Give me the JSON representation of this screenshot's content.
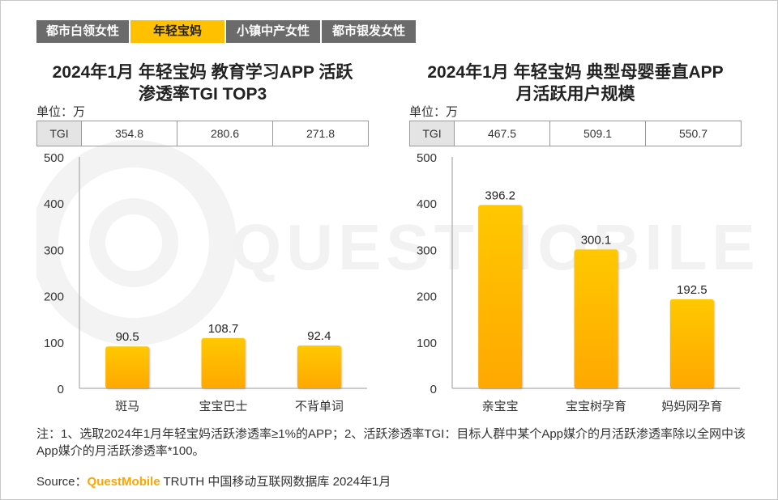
{
  "tabs": [
    {
      "label": "都市白领女性",
      "active": false
    },
    {
      "label": "年轻宝妈",
      "active": true
    },
    {
      "label": "小镇中产女性",
      "active": false
    },
    {
      "label": "都市银发女性",
      "active": false
    }
  ],
  "watermark": "QUESTMOBILE",
  "colors": {
    "bar_top": "#ffc800",
    "bar_bottom": "#ffa800",
    "tab_active": "#ffc000",
    "tab_inactive": "#6b6b6b",
    "brand": "#ffa500"
  },
  "chart_data": [
    {
      "type": "bar",
      "title_line1": "2024年1月 年轻宝妈 教育学习APP 活跃",
      "title_line2": "渗透率TGI TOP3",
      "unit": "单位：万",
      "tgi_label": "TGI",
      "tgi_values": [
        "354.8",
        "280.6",
        "271.8"
      ],
      "categories": [
        "斑马",
        "宝宝巴士",
        "不背单词"
      ],
      "values": [
        90.5,
        108.7,
        92.4
      ],
      "value_labels": [
        "90.5",
        "108.7",
        "92.4"
      ],
      "ylim": [
        0,
        500
      ],
      "yticks": [
        0,
        100,
        200,
        300,
        400,
        500
      ]
    },
    {
      "type": "bar",
      "title_line1": "2024年1月 年轻宝妈 典型母婴垂直APP",
      "title_line2": "月活跃用户规模",
      "unit": "单位：万",
      "tgi_label": "TGI",
      "tgi_values": [
        "467.5",
        "509.1",
        "550.7"
      ],
      "categories": [
        "亲宝宝",
        "宝宝树孕育",
        "妈妈网孕育"
      ],
      "values": [
        396.2,
        300.1,
        192.5
      ],
      "value_labels": [
        "396.2",
        "300.1",
        "192.5"
      ],
      "ylim": [
        0,
        500
      ],
      "yticks": [
        0,
        100,
        200,
        300,
        400,
        500
      ]
    }
  ],
  "note": "注：1、选取2024年1月年轻宝妈活跃渗透率≥1%的APP；2、活跃渗透率TGI：目标人群中某个App媒介的月活跃渗透率除以全网中该App媒介的月活跃渗透率*100。",
  "source": {
    "prefix": "Source：",
    "brand": "QuestMobile",
    "rest": " TRUTH 中国移动互联网数据库 2024年1月"
  }
}
